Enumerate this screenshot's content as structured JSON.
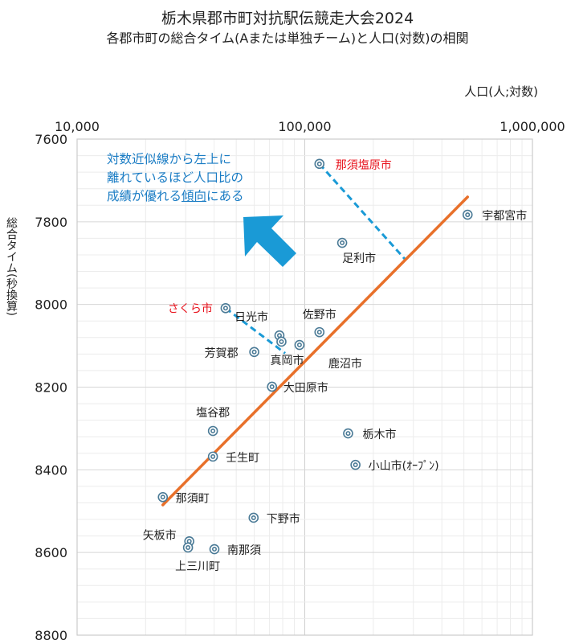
{
  "title": "栃木県郡市町対抗駅伝競走大会2024",
  "subtitle": "各郡市町の総合タイム(Aまたは単独チーム)と人口(対数)の相関",
  "annotation": {
    "line1": "対数近似線から左上に",
    "line2": "離れているほど人口比の",
    "line3_pre": "成績が優れる",
    "line3_underlined": "傾向",
    "line3_post": "にある",
    "color": "#1a7cc4",
    "arrow_color": "#1a9ad6"
  },
  "chart_data": {
    "type": "scatter",
    "title": "栃木県郡市町対抗駅伝競走大会2024",
    "subtitle": "各郡市町の総合タイム(Aまたは単独チーム)と人口(対数)の相関",
    "xlabel": "人口(人;対数)",
    "ylabel": "総合タイム(秒換算)",
    "x_scale": "log",
    "xlim": [
      10000,
      1000000
    ],
    "ylim": [
      7600,
      8800
    ],
    "y_reversed": true,
    "x_ticks": [
      "10,000",
      "100,000",
      "1,000,000"
    ],
    "y_ticks": [
      "7600",
      "7800",
      "8000",
      "8200",
      "8400",
      "8600",
      "8800"
    ],
    "grid": true,
    "marker_color": "#4a7a96",
    "points": [
      {
        "name": "那須塩原市",
        "x": 116000,
        "y": 7660,
        "highlight": true
      },
      {
        "name": "宇都宮市",
        "x": 519000,
        "y": 7783
      },
      {
        "name": "足利市",
        "x": 146000,
        "y": 7851
      },
      {
        "name": "さくら市",
        "x": 44900,
        "y": 8009,
        "highlight": true
      },
      {
        "name": "日光市",
        "x": 77400,
        "y": 8075
      },
      {
        "name": "佐野市",
        "x": 116000,
        "y": 8067
      },
      {
        "name": "真岡市",
        "x": 79000,
        "y": 8090
      },
      {
        "name": "鹿沼市",
        "x": 94800,
        "y": 8098
      },
      {
        "name": "芳賀郡",
        "x": 60000,
        "y": 8115
      },
      {
        "name": "大田原市",
        "x": 71800,
        "y": 8199
      },
      {
        "name": "栃木市",
        "x": 155000,
        "y": 8312
      },
      {
        "name": "小山市(ｵｰﾌﾟﾝ)",
        "x": 167000,
        "y": 8388
      },
      {
        "name": "塩谷郡",
        "x": 39500,
        "y": 8306
      },
      {
        "name": "壬生町",
        "x": 39500,
        "y": 8368
      },
      {
        "name": "那須町",
        "x": 23800,
        "y": 8466
      },
      {
        "name": "下野市",
        "x": 59600,
        "y": 8516
      },
      {
        "name": "矢板市",
        "x": 31100,
        "y": 8573
      },
      {
        "name": "上三川町",
        "x": 30700,
        "y": 8588
      },
      {
        "name": "南那須",
        "x": 40100,
        "y": 8592
      }
    ],
    "trendline": {
      "type": "logarithmic",
      "color": "#e8702a",
      "from": {
        "x": 23800,
        "y": 8485
      },
      "to": {
        "x": 519000,
        "y": 7740
      }
    },
    "residual_lines": [
      {
        "from_name": "那須塩原市",
        "from": {
          "x": 116000,
          "y": 7660
        },
        "to": {
          "x": 275000,
          "y": 7890
        }
      },
      {
        "from_name": "さくら市",
        "from": {
          "x": 44900,
          "y": 8009
        },
        "to": {
          "x": 82000,
          "y": 8118
        }
      }
    ],
    "residual_color": "#1a9ad6"
  }
}
